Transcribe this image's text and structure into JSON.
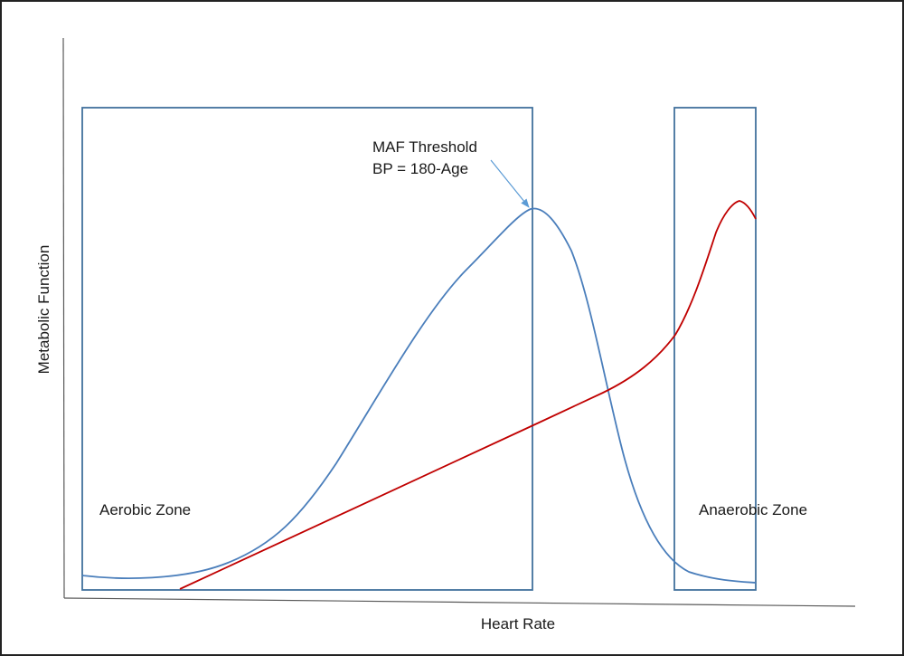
{
  "axes": {
    "xlabel": "Heart Rate",
    "ylabel": "Metabolic Function"
  },
  "zones": {
    "aerobic": "Aerobic Zone",
    "anaerobic": "Anaerobic Zone"
  },
  "annotation": {
    "line1": "MAF Threshold",
    "line2": "BP = 180-Age"
  },
  "colors": {
    "aerobic_curve": "#4a7ebb",
    "anaerobic_curve": "#c00000",
    "zone_box": "#41719c",
    "arrow": "#5b9bd5",
    "axis": "#595959"
  }
}
